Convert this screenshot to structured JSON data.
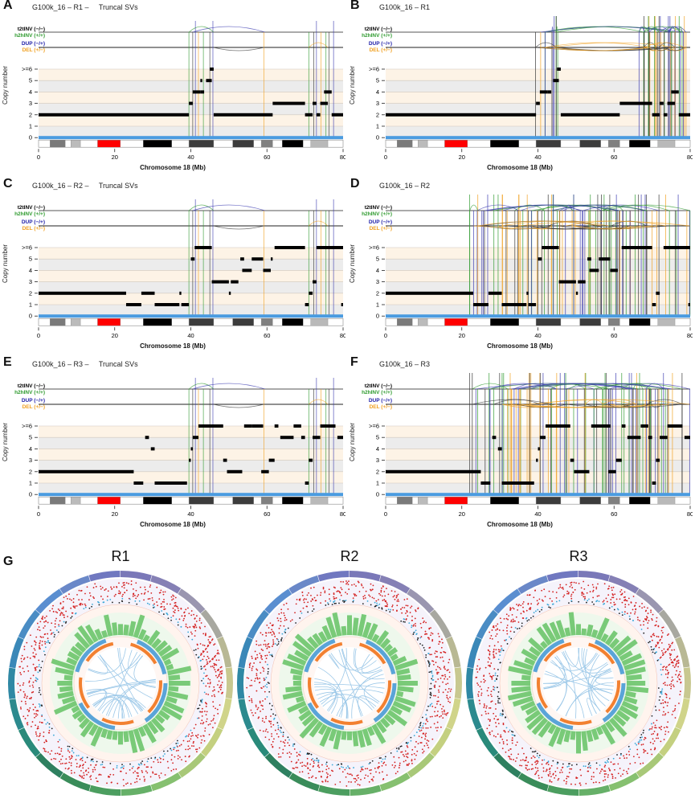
{
  "figure": {
    "sv_legend": {
      "t2tINV": "t2tINV (−/−)",
      "h2hINV": "h2hINV (+/+)",
      "DUP": "DUP (−/+)",
      "DEL": "DEL (+/−)"
    },
    "colors": {
      "t2tINV": "#333333",
      "h2hINV": "#2e9a2e",
      "DUP": "#3a3ab0",
      "DEL": "#f0a020",
      "cn_band_odd": "#fdf3e6",
      "cn_band_even": "#ececec",
      "baseline": "#4a9be0",
      "centromere": "#ff0000"
    },
    "ylabel": "Copy number",
    "yticks": [
      ">=6",
      "5",
      "4",
      "3",
      "2",
      "1",
      "0"
    ],
    "xlabel": "Chromosome 18 (Mb)",
    "xticks": [
      "0",
      "20",
      "40",
      "60",
      "80"
    ],
    "panels": [
      {
        "letter": "A",
        "title": "G100k_16 – R1 –     Truncal SVs"
      },
      {
        "letter": "B",
        "title": "G100k_16 – R1"
      },
      {
        "letter": "C",
        "title": "G100k_16 – R2 –     Truncal SVs"
      },
      {
        "letter": "D",
        "title": "G100k_16 – R2"
      },
      {
        "letter": "E",
        "title": "G100k_16 – R3 –     Truncal SVs"
      },
      {
        "letter": "F",
        "title": "G100k_16 – R3"
      }
    ],
    "circos": {
      "letter": "G",
      "titles": [
        "R1",
        "R2",
        "R3"
      ]
    }
  },
  "chart_data": [
    {
      "type": "scatter",
      "panel": "A",
      "title": "G100k_16 – R1 – Truncal SVs",
      "xlabel": "Chromosome 18 (Mb)",
      "ylabel": "Copy number",
      "xlim": [
        0,
        80
      ],
      "ylim": [
        0,
        6
      ],
      "segments": [
        [
          0,
          39.5,
          2
        ],
        [
          39.5,
          40.5,
          3
        ],
        [
          40.5,
          42.5,
          4
        ],
        [
          42.5,
          43.5,
          4
        ],
        [
          42.5,
          43,
          5
        ],
        [
          44,
          45.5,
          5
        ],
        [
          45,
          46,
          6
        ],
        [
          46,
          61.5,
          2
        ],
        [
          61.5,
          70,
          3
        ],
        [
          70,
          72,
          2
        ],
        [
          72,
          73,
          3
        ],
        [
          73,
          74,
          2
        ],
        [
          74,
          76,
          3
        ],
        [
          75,
          77,
          4
        ],
        [
          77,
          80,
          2
        ]
      ],
      "sv_positions": [
        39.5,
        40.5,
        41.2,
        42,
        43.3,
        45,
        45.8,
        59.2,
        71,
        72.3,
        73,
        74.2,
        75.5,
        76.3,
        77.5
      ]
    },
    {
      "type": "scatter",
      "panel": "B",
      "title": "G100k_16 – R1",
      "xlabel": "Chromosome 18 (Mb)",
      "ylabel": "Copy number",
      "xlim": [
        0,
        80
      ],
      "ylim": [
        0,
        6
      ],
      "segments": [
        [
          0,
          39.5,
          2
        ],
        [
          39.5,
          40.5,
          3
        ],
        [
          40.5,
          42.5,
          4
        ],
        [
          42.5,
          43.5,
          4
        ],
        [
          44,
          45.5,
          5
        ],
        [
          45,
          46,
          6
        ],
        [
          46,
          61.5,
          2
        ],
        [
          61.5,
          70,
          3
        ],
        [
          70,
          72,
          2
        ],
        [
          72,
          73,
          3
        ],
        [
          73,
          74,
          2
        ],
        [
          74,
          76,
          3
        ],
        [
          75,
          77,
          4
        ],
        [
          77,
          80,
          2
        ]
      ]
    },
    {
      "type": "scatter",
      "panel": "C",
      "title": "G100k_16 – R2 – Truncal SVs",
      "xlabel": "Chromosome 18 (Mb)",
      "ylabel": "Copy number",
      "xlim": [
        0,
        80
      ],
      "ylim": [
        0,
        6
      ],
      "segments": [
        [
          0,
          23,
          2
        ],
        [
          23,
          27,
          1
        ],
        [
          27,
          30.5,
          2
        ],
        [
          30.5,
          37,
          1
        ],
        [
          37,
          37.5,
          2
        ],
        [
          37.5,
          39.5,
          1
        ],
        [
          40,
          41,
          5
        ],
        [
          41,
          45.5,
          6
        ],
        [
          45.5,
          50,
          3
        ],
        [
          50,
          50.5,
          2
        ],
        [
          50.5,
          52.5,
          3
        ],
        [
          53,
          54,
          5
        ],
        [
          53.5,
          56,
          4
        ],
        [
          56,
          59,
          5
        ],
        [
          59,
          61,
          4
        ],
        [
          61,
          61.5,
          5
        ],
        [
          62,
          70,
          6
        ],
        [
          70,
          71,
          1
        ],
        [
          71,
          72,
          2
        ],
        [
          72,
          73,
          3
        ],
        [
          73,
          80,
          6
        ],
        [
          79.5,
          80,
          1
        ]
      ]
    },
    {
      "type": "scatter",
      "panel": "D",
      "title": "G100k_16 – R2",
      "xlabel": "Chromosome 18 (Mb)",
      "ylabel": "Copy number",
      "xlim": [
        0,
        80
      ],
      "ylim": [
        0,
        6
      ],
      "segments": [
        [
          0,
          23,
          2
        ],
        [
          23,
          27,
          1
        ],
        [
          27,
          30.5,
          2
        ],
        [
          30.5,
          37,
          1
        ],
        [
          37,
          37.5,
          2
        ],
        [
          37.5,
          39.5,
          1
        ],
        [
          40,
          41,
          5
        ],
        [
          41,
          45.5,
          6
        ],
        [
          45.5,
          50,
          3
        ],
        [
          50,
          50.5,
          2
        ],
        [
          50.5,
          52.5,
          3
        ],
        [
          53,
          54,
          5
        ],
        [
          53.5,
          56,
          4
        ],
        [
          56,
          59,
          5
        ],
        [
          59,
          61,
          4
        ],
        [
          62,
          70,
          6
        ],
        [
          70,
          71,
          1
        ],
        [
          71,
          72,
          2
        ],
        [
          73,
          80,
          6
        ],
        [
          79.5,
          80,
          1
        ]
      ]
    },
    {
      "type": "scatter",
      "panel": "E",
      "title": "G100k_16 – R3 – Truncal SVs",
      "xlabel": "Chromosome 18 (Mb)",
      "ylabel": "Copy number",
      "xlim": [
        0,
        80
      ],
      "ylim": [
        0,
        6
      ],
      "segments": [
        [
          0,
          25,
          2
        ],
        [
          25,
          27.5,
          1
        ],
        [
          28,
          29,
          5
        ],
        [
          29.5,
          30.5,
          4
        ],
        [
          30.5,
          39,
          1
        ],
        [
          39.5,
          40,
          3
        ],
        [
          40,
          40.5,
          4
        ],
        [
          40.5,
          42,
          5
        ],
        [
          42,
          48.5,
          6
        ],
        [
          48.5,
          49.5,
          3
        ],
        [
          49.5,
          53.5,
          2
        ],
        [
          54,
          56,
          6
        ],
        [
          56,
          59,
          6
        ],
        [
          58.5,
          60.5,
          2
        ],
        [
          60.5,
          62,
          3
        ],
        [
          62,
          63,
          6
        ],
        [
          63.5,
          67,
          5
        ],
        [
          67,
          69,
          6
        ],
        [
          69,
          70,
          5
        ],
        [
          70,
          71,
          1
        ],
        [
          71,
          72,
          3
        ],
        [
          72,
          74,
          5
        ],
        [
          74,
          78,
          6
        ],
        [
          78.5,
          80,
          5
        ]
      ]
    },
    {
      "type": "scatter",
      "panel": "F",
      "title": "G100k_16 – R3",
      "xlabel": "Chromosome 18 (Mb)",
      "ylabel": "Copy number",
      "xlim": [
        0,
        80
      ],
      "ylim": [
        0,
        6
      ],
      "segments": [
        [
          0,
          25,
          2
        ],
        [
          25,
          27.5,
          1
        ],
        [
          28,
          29,
          5
        ],
        [
          29.5,
          30.5,
          4
        ],
        [
          30.5,
          39,
          1
        ],
        [
          39.5,
          40,
          3
        ],
        [
          40,
          40.5,
          4
        ],
        [
          40.5,
          42,
          5
        ],
        [
          42,
          48.5,
          6
        ],
        [
          48.5,
          49.5,
          3
        ],
        [
          49.5,
          53.5,
          2
        ],
        [
          54,
          59,
          6
        ],
        [
          58.5,
          60.5,
          2
        ],
        [
          60.5,
          62,
          3
        ],
        [
          62,
          63,
          6
        ],
        [
          63.5,
          67,
          5
        ],
        [
          67,
          69,
          6
        ],
        [
          69,
          70,
          5
        ],
        [
          70,
          71,
          1
        ],
        [
          71,
          72,
          3
        ],
        [
          72,
          74,
          5
        ],
        [
          74,
          78,
          6
        ],
        [
          78.5,
          80,
          5
        ]
      ]
    }
  ]
}
